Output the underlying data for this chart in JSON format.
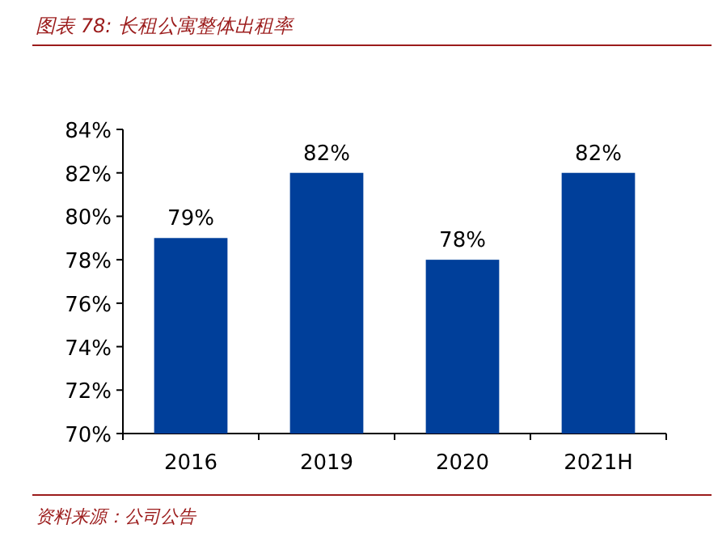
{
  "chart_data": {
    "type": "bar",
    "title": "图表 78: 长租公寓整体出租率",
    "categories": [
      "2016",
      "2019",
      "2020",
      "2021H"
    ],
    "values": [
      79,
      82,
      78,
      82
    ],
    "color": "#003f9a",
    "ylim": [
      70,
      84
    ],
    "yticks": [
      {
        "value": 70,
        "label": "70%"
      },
      {
        "value": 72,
        "label": "72%"
      },
      {
        "value": 74,
        "label": "74%"
      },
      {
        "value": 76,
        "label": "76%"
      },
      {
        "value": 78,
        "label": "78%"
      },
      {
        "value": 80,
        "label": "80%"
      },
      {
        "value": 82,
        "label": "82%"
      },
      {
        "value": 84,
        "label": "84%"
      }
    ],
    "value_labels": [
      "79%",
      "82%",
      "78%",
      "82%"
    ],
    "annotations": [
      "资料来源：公司公告"
    ]
  }
}
